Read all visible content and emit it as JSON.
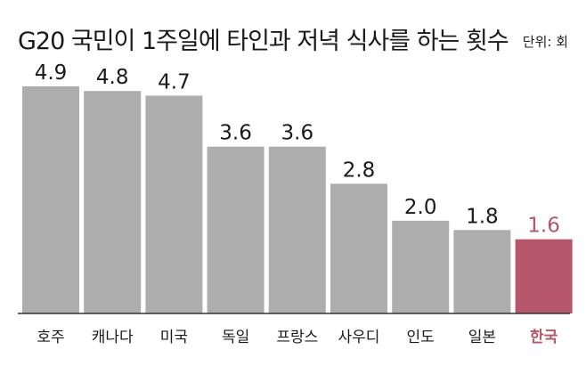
{
  "chart_data": {
    "type": "bar",
    "title": "G20 국민이 1주일에 타인과 저녁 식사를 하는 횟수",
    "unit_label": "단위: 회",
    "categories": [
      "호주",
      "캐나다",
      "미국",
      "독일",
      "프랑스",
      "사우디",
      "인도",
      "일본",
      "한국"
    ],
    "values": [
      4.9,
      4.8,
      4.7,
      3.6,
      3.6,
      2.8,
      2.0,
      1.8,
      1.6
    ],
    "value_labels": [
      "4.9",
      "4.8",
      "4.7",
      "3.6",
      "3.6",
      "2.8",
      "2.0",
      "1.8",
      "1.6"
    ],
    "highlight_index": 8,
    "ylim": [
      0,
      4.9
    ],
    "grid": false,
    "legend": "none",
    "colors": {
      "bar": "#adadae",
      "highlight_bar": "#b6566a",
      "label": "#1a1a1a",
      "highlight_label": "#b6566a",
      "baseline": "#333333"
    }
  }
}
